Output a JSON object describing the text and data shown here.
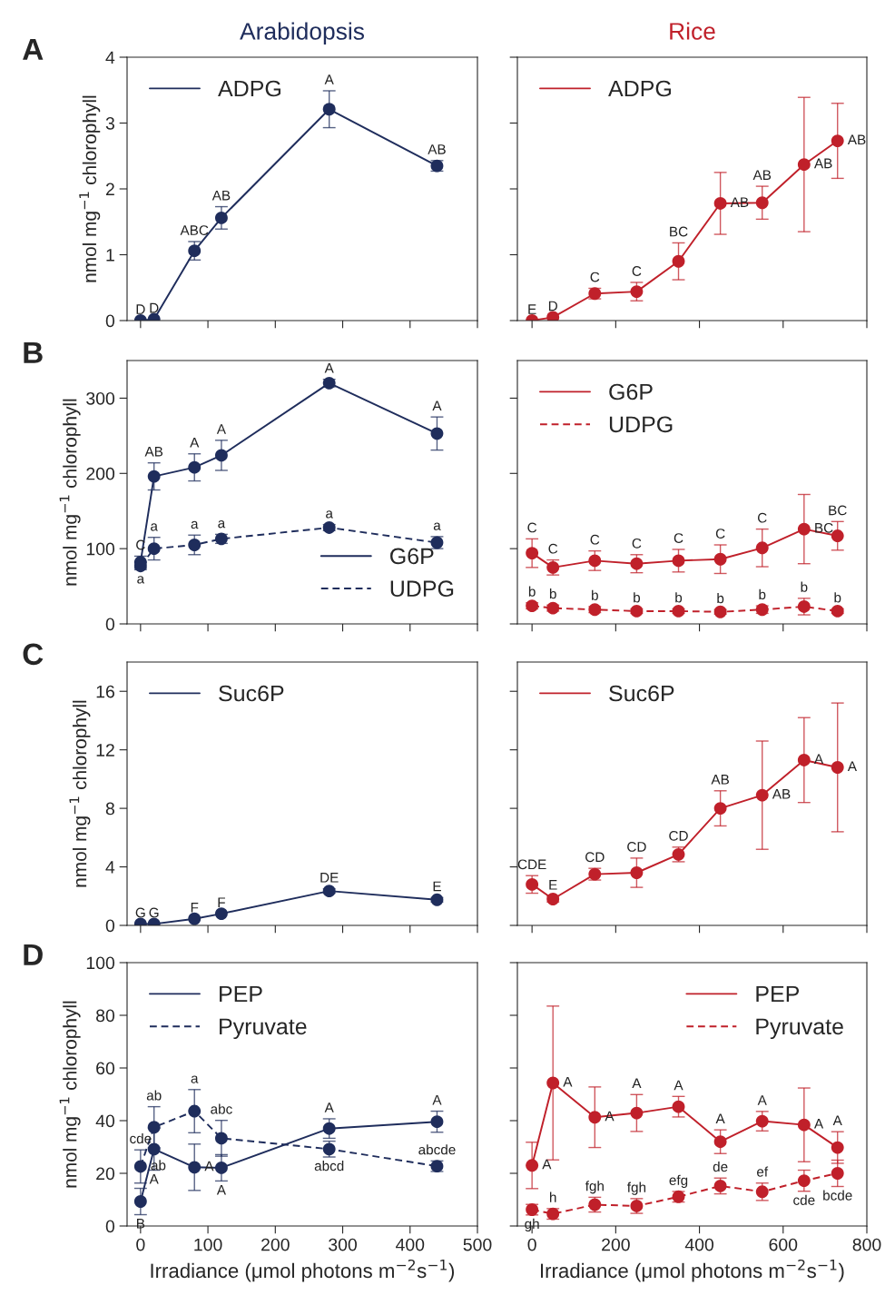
{
  "chart_data": [
    {
      "type": "line",
      "title": "Arabidopsis",
      "ylabel": "nmol mg$^{−1}$ chlorophyll",
      "x": [
        0,
        20,
        80,
        120,
        280,
        440
      ],
      "xlim": [
        -20,
        500
      ],
      "xticks": [
        0,
        100,
        200,
        300,
        400,
        500
      ],
      "ylim": [
        0,
        4
      ],
      "yticks": [
        0,
        1,
        2,
        3,
        4
      ],
      "tick_labels": "y",
      "legend": "top left",
      "marker": "circle",
      "grid": false,
      "series": [
        {
          "name": "ADPG",
          "color": "#1f2d5c",
          "line_style": "solid",
          "values": [
            0,
            0.02,
            1.06,
            1.56,
            3.21,
            2.35
          ],
          "errors": [
            null,
            null,
            0.14,
            0.17,
            0.28,
            0.08
          ]
        }
      ],
      "annotations": [
        "A",
        {
          "text": "D",
          "x": 0,
          "y": 0
        },
        {
          "text": "D",
          "x": 20,
          "y": 0.02
        },
        {
          "text": "ABC",
          "x": 80,
          "y": 1.06
        },
        {
          "text": "AB",
          "x": 120,
          "y": 1.56
        },
        {
          "text": "A",
          "x": 280,
          "y": 3.21
        },
        {
          "text": "AB",
          "x": 440,
          "y": 2.35
        }
      ]
    },
    {
      "type": "line",
      "title": "Rice",
      "x": [
        0,
        50,
        150,
        250,
        350,
        450,
        550,
        650,
        730
      ],
      "xlim": [
        -35,
        800
      ],
      "xticks": [
        0,
        200,
        400,
        600,
        800
      ],
      "ylim": [
        0,
        4
      ],
      "yticks": [
        0,
        1,
        2,
        3,
        4
      ],
      "tick_labels": false,
      "legend": "top left",
      "marker": "circle",
      "grid": false,
      "series": [
        {
          "name": "ADPG",
          "color": "#c0202a",
          "line_style": "solid",
          "values": [
            0,
            0.05,
            0.41,
            0.44,
            0.9,
            1.78,
            1.79,
            2.37,
            2.73
          ],
          "errors": [
            null,
            null,
            0.08,
            0.14,
            0.28,
            0.47,
            0.25,
            1.02,
            0.57
          ]
        }
      ],
      "annotations": [
        {
          "text": "E",
          "x": 0,
          "y": 0
        },
        {
          "text": "D",
          "x": 50,
          "y": 0.05
        },
        {
          "text": "C",
          "x": 150,
          "y": 0.41
        },
        {
          "text": "C",
          "x": 250,
          "y": 0.44
        },
        {
          "text": "BC",
          "x": 350,
          "y": 0.9
        },
        {
          "text": "AB",
          "x": 450,
          "y": 1.78
        },
        {
          "text": "AB",
          "x": 550,
          "y": 1.79
        },
        {
          "text": "AB",
          "x": 650,
          "y": 2.37
        },
        {
          "text": "AB",
          "x": 730,
          "y": 2.73
        }
      ]
    },
    {
      "type": "line",
      "ylabel": "nmol mg$^{−1}$ chlorophyll",
      "x": [
        0,
        20,
        80,
        120,
        280,
        440
      ],
      "xlim": [
        -20,
        500
      ],
      "xticks": [
        0,
        100,
        200,
        300,
        400,
        500
      ],
      "ylim": [
        0,
        350
      ],
      "yticks": [
        0,
        100,
        200,
        300
      ],
      "tick_labels": "y",
      "legend": "bottom right",
      "marker": "circle",
      "grid": false,
      "series": [
        {
          "name": "G6P",
          "color": "#1f2d5c",
          "line_style": "solid",
          "values": [
            82,
            196,
            208,
            224,
            320,
            253
          ],
          "errors": [
            8,
            18,
            18,
            20,
            5,
            22
          ]
        },
        {
          "name": "UDPG",
          "color": "#1f2d5c",
          "line_style": "dashed",
          "values": [
            77,
            100,
            105,
            113,
            128,
            108
          ],
          "errors": [
            5,
            15,
            13,
            6,
            4,
            8
          ]
        }
      ],
      "annotations": [
        "B",
        {
          "text": "C",
          "x": 0,
          "y": 82
        },
        {
          "text": "a",
          "x": 0,
          "y": 77
        },
        {
          "text": "AB",
          "x": 20,
          "y": 196
        },
        {
          "text": "a",
          "x": 20,
          "y": 100
        },
        {
          "text": "A",
          "x": 80,
          "y": 208
        },
        {
          "text": "a",
          "x": 80,
          "y": 105
        },
        {
          "text": "A",
          "x": 120,
          "y": 224
        },
        {
          "text": "a",
          "x": 120,
          "y": 113
        },
        {
          "text": "A",
          "x": 280,
          "y": 320
        },
        {
          "text": "a",
          "x": 280,
          "y": 128
        },
        {
          "text": "A",
          "x": 440,
          "y": 253
        },
        {
          "text": "a",
          "x": 440,
          "y": 108
        }
      ]
    },
    {
      "type": "line",
      "x": [
        0,
        50,
        150,
        250,
        350,
        450,
        550,
        650,
        730
      ],
      "xlim": [
        -35,
        800
      ],
      "xticks": [
        0,
        200,
        400,
        600,
        800
      ],
      "ylim": [
        0,
        350
      ],
      "yticks": [
        0,
        100,
        200,
        300
      ],
      "tick_labels": false,
      "legend": "top left",
      "marker": "circle",
      "grid": false,
      "series": [
        {
          "name": "G6P",
          "color": "#c0202a",
          "line_style": "solid",
          "values": [
            94,
            75,
            84,
            80,
            84,
            86,
            101,
            126,
            117
          ],
          "errors": [
            19,
            10,
            13,
            12,
            15,
            19,
            25,
            46,
            19
          ]
        },
        {
          "name": "UDPG",
          "color": "#c0202a",
          "line_style": "dashed",
          "values": [
            24,
            21,
            19,
            17,
            17,
            16,
            19,
            23,
            17
          ],
          "errors": [
            4,
            4,
            4,
            3,
            3,
            3,
            5,
            11,
            3
          ]
        }
      ],
      "annotations": [
        {
          "text": "C",
          "x": 0,
          "y": 94
        },
        {
          "text": "C",
          "x": 50,
          "y": 75
        },
        {
          "text": "C",
          "x": 150,
          "y": 84
        },
        {
          "text": "C",
          "x": 250,
          "y": 80
        },
        {
          "text": "C",
          "x": 350,
          "y": 84
        },
        {
          "text": "C",
          "x": 450,
          "y": 86
        },
        {
          "text": "C",
          "x": 550,
          "y": 101
        },
        {
          "text": "BC",
          "x": 650,
          "y": 126
        },
        {
          "text": "BC",
          "x": 730,
          "y": 117
        },
        {
          "text": "b",
          "x": 0,
          "y": 24
        },
        {
          "text": "b",
          "x": 50,
          "y": 21
        },
        {
          "text": "b",
          "x": 150,
          "y": 19
        },
        {
          "text": "b",
          "x": 250,
          "y": 17
        },
        {
          "text": "b",
          "x": 350,
          "y": 17
        },
        {
          "text": "b",
          "x": 450,
          "y": 16
        },
        {
          "text": "b",
          "x": 550,
          "y": 19
        },
        {
          "text": "b",
          "x": 650,
          "y": 23
        },
        {
          "text": "b",
          "x": 730,
          "y": 17
        }
      ]
    },
    {
      "type": "line",
      "ylabel": "nmol mg$^{−1}$ chlorophyll",
      "x": [
        0,
        20,
        80,
        120,
        280,
        440
      ],
      "xlim": [
        -20,
        500
      ],
      "xticks": [
        0,
        100,
        200,
        300,
        400,
        500
      ],
      "ylim": [
        0,
        18
      ],
      "yticks": [
        0,
        4,
        8,
        12,
        16
      ],
      "tick_labels": "y",
      "legend": "top left",
      "marker": "circle",
      "grid": false,
      "series": [
        {
          "name": "Suc6P",
          "color": "#1f2d5c",
          "line_style": "solid",
          "values": [
            0.1,
            0.1,
            0.45,
            0.8,
            2.35,
            1.75
          ],
          "errors": [
            null,
            null,
            null,
            null,
            0.15,
            0.15
          ]
        }
      ],
      "annotations": [
        "C",
        {
          "text": "G",
          "x": 0,
          "y": 0.1
        },
        {
          "text": "G",
          "x": 20,
          "y": 0.1
        },
        {
          "text": "F",
          "x": 80,
          "y": 0.45
        },
        {
          "text": "F",
          "x": 120,
          "y": 0.8
        },
        {
          "text": "DE",
          "x": 280,
          "y": 2.35
        },
        {
          "text": "E",
          "x": 440,
          "y": 1.75
        }
      ]
    },
    {
      "type": "line",
      "x": [
        0,
        50,
        150,
        250,
        350,
        450,
        550,
        650,
        730
      ],
      "xlim": [
        -35,
        800
      ],
      "xticks": [
        0,
        200,
        400,
        600,
        800
      ],
      "ylim": [
        0,
        18
      ],
      "yticks": [
        0,
        4,
        8,
        12,
        16
      ],
      "tick_labels": false,
      "legend": "top left",
      "marker": "circle",
      "grid": false,
      "series": [
        {
          "name": "Suc6P",
          "color": "#c0202a",
          "line_style": "solid",
          "values": [
            2.8,
            1.8,
            3.5,
            3.6,
            4.85,
            8.0,
            8.9,
            11.3,
            10.8
          ],
          "errors": [
            0.6,
            0.2,
            0.4,
            1.0,
            0.5,
            1.2,
            3.7,
            2.9,
            4.4
          ]
        }
      ],
      "annotations": [
        {
          "text": "CDE",
          "x": 0,
          "y": 2.8
        },
        {
          "text": "E",
          "x": 50,
          "y": 1.8
        },
        {
          "text": "CD",
          "x": 150,
          "y": 3.5
        },
        {
          "text": "CD",
          "x": 250,
          "y": 3.6
        },
        {
          "text": "CD",
          "x": 350,
          "y": 4.85
        },
        {
          "text": "AB",
          "x": 450,
          "y": 8.0
        },
        {
          "text": "AB",
          "x": 550,
          "y": 8.9
        },
        {
          "text": "A",
          "x": 650,
          "y": 11.3
        },
        {
          "text": "A",
          "x": 730,
          "y": 10.8
        }
      ]
    },
    {
      "type": "line",
      "ylabel": "nmol mg$^{−1}$ chlorophyll",
      "xlabel": "Irradiance (μmol photons m$^{−2}$s$^{−1}$)",
      "x": [
        0,
        20,
        80,
        120,
        280,
        440
      ],
      "xlim": [
        -20,
        500
      ],
      "xticks": [
        0,
        100,
        200,
        300,
        400,
        500
      ],
      "ylim": [
        0,
        100
      ],
      "yticks": [
        0,
        20,
        40,
        60,
        80,
        100
      ],
      "legend": "top left",
      "marker": "circle",
      "grid": false,
      "series": [
        {
          "name": "PEP",
          "color": "#1f2d5c",
          "line_style": "solid",
          "values": [
            9.3,
            29.2,
            22.3,
            22.1,
            37.0,
            39.6
          ],
          "errors": [
            5,
            8,
            8.8,
            5,
            3.7,
            4
          ]
        },
        {
          "name": "Pyruvate",
          "color": "#1f2d5c",
          "line_style": "dashed",
          "values": [
            22.6,
            37.5,
            43.6,
            33.3,
            29.2,
            22.7
          ],
          "errors": [
            6.3,
            7.8,
            8.2,
            6.8,
            3,
            2
          ]
        }
      ],
      "annotations": [
        "D",
        {
          "text": "B",
          "x": 0,
          "y": 9.3
        },
        {
          "text": "A",
          "x": 20,
          "y": 29.2
        },
        {
          "text": "A",
          "x": 80,
          "y": 22.3
        },
        {
          "text": "A",
          "x": 120,
          "y": 22.1
        },
        {
          "text": "A",
          "x": 280,
          "y": 37.0
        },
        {
          "text": "A",
          "x": 440,
          "y": 39.6
        },
        {
          "text": "ab",
          "x": 0,
          "y": 22.6
        },
        {
          "text": "cde",
          "x": 0,
          "y": 22.6
        },
        {
          "text": "ab",
          "x": 20,
          "y": 37.5
        },
        {
          "text": "a",
          "x": 80,
          "y": 43.6
        },
        {
          "text": "abc",
          "x": 120,
          "y": 33.3
        },
        {
          "text": "abcd",
          "x": 280,
          "y": 29.2
        },
        {
          "text": "abcde",
          "x": 440,
          "y": 22.7
        }
      ]
    },
    {
      "type": "line",
      "xlabel": "Irradiance (μmol photons m$^{−2}$s$^{−1}$)",
      "x": [
        0,
        50,
        150,
        250,
        350,
        450,
        550,
        650,
        730
      ],
      "xlim": [
        -35,
        800
      ],
      "xticks": [
        0,
        200,
        400,
        600,
        800
      ],
      "ylim": [
        0,
        100
      ],
      "yticks": [
        0,
        20,
        40,
        60,
        80,
        100
      ],
      "tick_labels": "x",
      "legend": "top right",
      "marker": "circle",
      "grid": false,
      "series": [
        {
          "name": "PEP",
          "color": "#c0202a",
          "line_style": "solid",
          "values": [
            23.0,
            54.3,
            41.3,
            42.9,
            45.3,
            32.0,
            39.8,
            38.4,
            29.8
          ],
          "errors": [
            8.8,
            29.2,
            11.5,
            7,
            3.9,
            4.5,
            3.7,
            14,
            6
          ]
        },
        {
          "name": "Pyruvate",
          "color": "#c0202a",
          "line_style": "dashed",
          "values": [
            6.2,
            4.6,
            8.1,
            7.6,
            11.1,
            15.2,
            13.0,
            17.2,
            20.0
          ],
          "errors": [
            2,
            2,
            2.8,
            2.8,
            2,
            3,
            3.3,
            4,
            5
          ]
        }
      ],
      "annotations": [
        {
          "text": "A",
          "x": 0,
          "y": 23.0
        },
        {
          "text": "A",
          "x": 50,
          "y": 54.3
        },
        {
          "text": "A",
          "x": 150,
          "y": 41.3
        },
        {
          "text": "A",
          "x": 250,
          "y": 42.9
        },
        {
          "text": "A",
          "x": 350,
          "y": 45.3
        },
        {
          "text": "A",
          "x": 450,
          "y": 32.0
        },
        {
          "text": "A",
          "x": 550,
          "y": 39.8
        },
        {
          "text": "A",
          "x": 650,
          "y": 38.4
        },
        {
          "text": "A",
          "x": 730,
          "y": 29.8
        },
        {
          "text": "gh",
          "x": 0,
          "y": 6.2
        },
        {
          "text": "h",
          "x": 50,
          "y": 4.6
        },
        {
          "text": "fgh",
          "x": 150,
          "y": 8.1
        },
        {
          "text": "fgh",
          "x": 250,
          "y": 7.6
        },
        {
          "text": "efg",
          "x": 350,
          "y": 11.1
        },
        {
          "text": "de",
          "x": 450,
          "y": 15.2
        },
        {
          "text": "ef",
          "x": 550,
          "y": 13.0
        },
        {
          "text": "cde",
          "x": 650,
          "y": 17.2
        },
        {
          "text": "bcde",
          "x": 730,
          "y": 20.0
        }
      ]
    }
  ]
}
